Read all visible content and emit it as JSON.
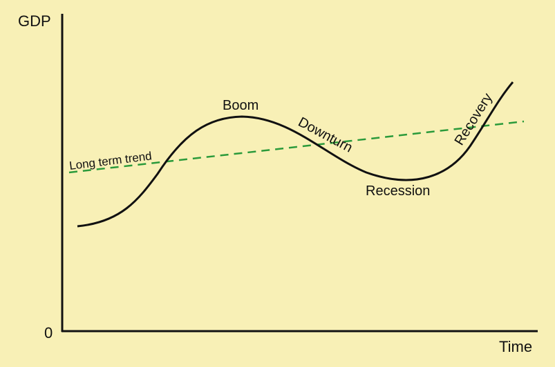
{
  "diagram": {
    "axes": {
      "y_label": "GDP",
      "x_label": "Time",
      "origin_label": "0"
    },
    "phases": {
      "boom": "Boom",
      "downturn": "Downturn",
      "recession": "Recession",
      "recovery": "Recovery"
    },
    "trend_label": "Long term trend",
    "colors": {
      "background": "#f8f0b6",
      "curve": "#111111",
      "trend": "#2a9a3a"
    }
  }
}
